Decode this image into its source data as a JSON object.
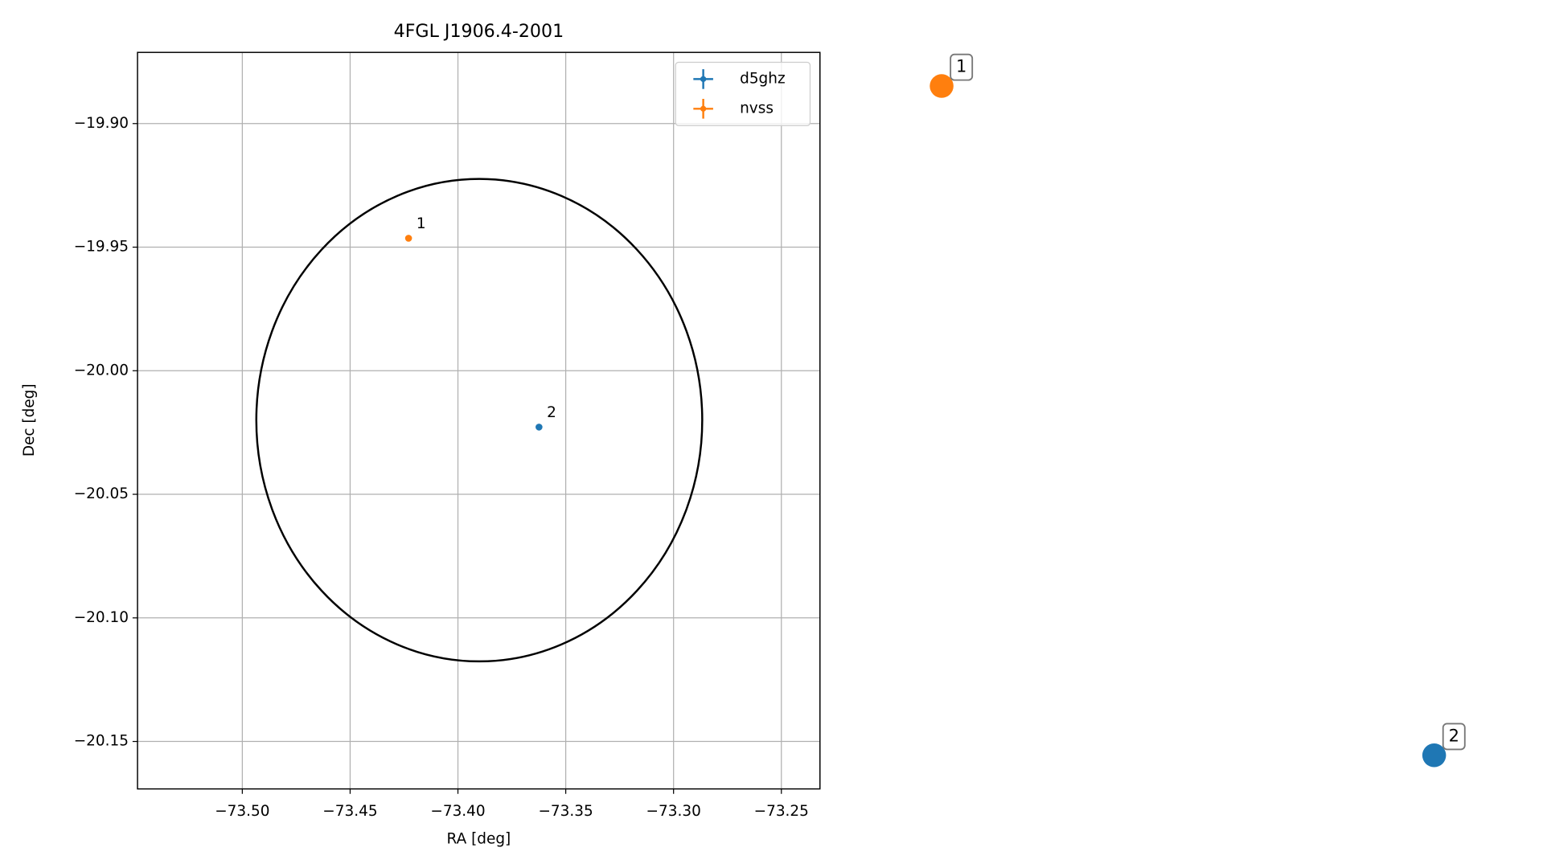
{
  "chart_data": {
    "type": "scatter",
    "title": "4FGL J1906.4-2001",
    "x_label": "RA [deg]",
    "y_label": "Dec [deg]",
    "xlim": [
      -73.5486,
      -73.2321
    ],
    "ylim": [
      -20.1692,
      -19.8712
    ],
    "xticks": [
      {
        "value": -73.5,
        "label": "−73.50"
      },
      {
        "value": -73.45,
        "label": "−73.45"
      },
      {
        "value": -73.4,
        "label": "−73.40"
      },
      {
        "value": -73.35,
        "label": "−73.35"
      },
      {
        "value": -73.3,
        "label": "−73.30"
      },
      {
        "value": -73.25,
        "label": "−73.25"
      }
    ],
    "yticks": [
      {
        "value": -19.9,
        "label": "−19.90"
      },
      {
        "value": -19.95,
        "label": "−19.95"
      },
      {
        "value": -20.0,
        "label": "−20.00"
      },
      {
        "value": -20.05,
        "label": "−20.05"
      },
      {
        "value": -20.1,
        "label": "−20.10"
      },
      {
        "value": -20.15,
        "label": "−20.15"
      }
    ],
    "grid": true,
    "legend": "upper right",
    "ellipse": {
      "x": -73.3901,
      "y": -20.02,
      "rx": 0.1034,
      "ry": 0.0976
    },
    "series": [
      {
        "name": "d5ghz",
        "color": "#1f77b4",
        "x": [
          -73.3624
        ],
        "values": [
          -20.0228
        ],
        "labels": [
          "2"
        ]
      },
      {
        "name": "nvss",
        "color": "#ff7f0e",
        "x": [
          -73.4229
        ],
        "values": [
          -19.9464
        ],
        "labels": [
          "1"
        ]
      }
    ]
  }
}
